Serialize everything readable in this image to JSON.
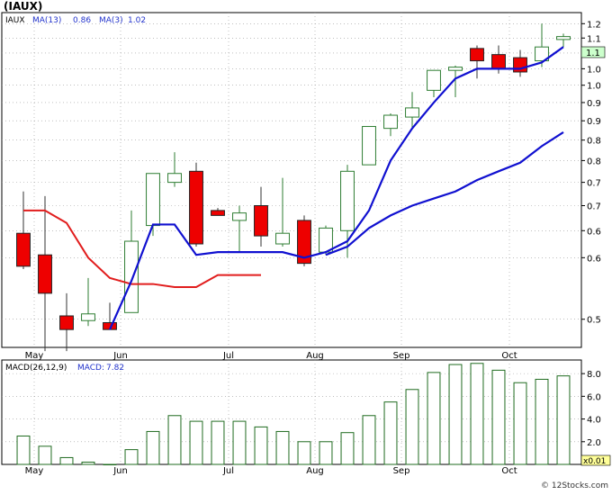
{
  "title": "(IAUX)",
  "copyright": "© 12Stocks.com",
  "colors": {
    "up_candle": "#2e7d32",
    "down_candle": "#ee0000",
    "ma_fast_red": "#e11d1d",
    "ma_blue": "#1010d0",
    "macd_bar": "#1f6b1f",
    "legend_ma": "#2233cc",
    "last_price_box": "#ccffcc"
  },
  "chart_data": [
    {
      "type": "candlestick",
      "legend": [
        "IAUX",
        "MA(13)",
        "0.86",
        "MA(3)",
        "1.02"
      ],
      "last_price_label": "1.1",
      "yaxis": {
        "ticks": [
          "1.2",
          "1.1",
          "1.1",
          "1.0",
          "1.0",
          "0.9",
          "0.9",
          "0.8",
          "0.8",
          "0.7",
          "0.7",
          "0.6",
          "0.6",
          "0.5"
        ],
        "log_scale": true,
        "range": [
          0.46,
          1.24
        ]
      },
      "xaxis": {
        "labels": [
          "May",
          "Jun",
          "Jul",
          "Aug",
          "Sep",
          "Oct"
        ],
        "label_positions": [
          1,
          5,
          10,
          14,
          18,
          23
        ]
      },
      "candles": [
        {
          "o": 0.645,
          "h": 0.73,
          "l": 0.58,
          "c": 0.585
        },
        {
          "o": 0.605,
          "h": 0.72,
          "l": 0.455,
          "c": 0.54
        },
        {
          "o": 0.505,
          "h": 0.54,
          "l": 0.455,
          "c": 0.485
        },
        {
          "o": 0.498,
          "h": 0.565,
          "l": 0.49,
          "c": 0.508
        },
        {
          "o": 0.495,
          "h": 0.525,
          "l": 0.488,
          "c": 0.485
        },
        {
          "o": 0.51,
          "h": 0.69,
          "l": 0.51,
          "c": 0.63
        },
        {
          "o": 0.66,
          "h": 0.77,
          "l": 0.64,
          "c": 0.77
        },
        {
          "o": 0.75,
          "h": 0.82,
          "l": 0.74,
          "c": 0.77
        },
        {
          "o": 0.775,
          "h": 0.795,
          "l": 0.62,
          "c": 0.625
        },
        {
          "o": 0.69,
          "h": 0.695,
          "l": 0.68,
          "c": 0.68
        },
        {
          "o": 0.67,
          "h": 0.7,
          "l": 0.61,
          "c": 0.685
        },
        {
          "o": 0.7,
          "h": 0.74,
          "l": 0.62,
          "c": 0.64
        },
        {
          "o": 0.625,
          "h": 0.76,
          "l": 0.62,
          "c": 0.645
        },
        {
          "o": 0.67,
          "h": 0.68,
          "l": 0.585,
          "c": 0.59
        },
        {
          "o": 0.61,
          "h": 0.66,
          "l": 0.605,
          "c": 0.655
        },
        {
          "o": 0.65,
          "h": 0.79,
          "l": 0.6,
          "c": 0.775
        },
        {
          "o": 0.79,
          "h": 0.88,
          "l": 0.79,
          "c": 0.885
        },
        {
          "o": 0.88,
          "h": 0.92,
          "l": 0.86,
          "c": 0.915
        },
        {
          "o": 0.91,
          "h": 0.98,
          "l": 0.88,
          "c": 0.935
        },
        {
          "o": 0.985,
          "h": 1.045,
          "l": 0.965,
          "c": 1.045
        },
        {
          "o": 1.045,
          "h": 1.06,
          "l": 0.965,
          "c": 1.055
        },
        {
          "o": 1.115,
          "h": 1.125,
          "l": 1.02,
          "c": 1.075
        },
        {
          "o": 1.095,
          "h": 1.125,
          "l": 1.035,
          "c": 1.05
        },
        {
          "o": 1.085,
          "h": 1.11,
          "l": 1.025,
          "c": 1.04
        },
        {
          "o": 1.075,
          "h": 1.2,
          "l": 1.055,
          "c": 1.12
        },
        {
          "o": 1.145,
          "h": 1.165,
          "l": 1.12,
          "c": 1.155
        }
      ],
      "ma_red": [
        0.69,
        0.69,
        0.665,
        0.6,
        0.565,
        0.555,
        0.555,
        0.55,
        0.55,
        0.57,
        0.57,
        0.57
      ],
      "ma_red_start": 0,
      "ma_blue": [
        0.485,
        0.56,
        0.662,
        0.662,
        0.605,
        0.61,
        0.61,
        0.61,
        0.61,
        0.6,
        0.61,
        0.63,
        0.69,
        0.8,
        0.88,
        0.95,
        1.02,
        1.05,
        1.05,
        1.05,
        1.07,
        1.12
      ],
      "ma_blue_start": 4,
      "ma_blue_slow": [
        0.605,
        0.62,
        0.655,
        0.68,
        0.7,
        0.715,
        0.73,
        0.755,
        0.775,
        0.795,
        0.835,
        0.87
      ],
      "ma_blue_slow_start": 14
    },
    {
      "type": "bar",
      "legend": [
        "MACD(26,12,9)",
        "MACD:",
        "7.82"
      ],
      "yaxis": {
        "ticks": [
          "8.0",
          "6.0",
          "4.0",
          "2.0"
        ],
        "range": [
          0,
          9.2
        ]
      },
      "scale_label": "x0.01",
      "xaxis": {
        "labels": [
          "May",
          "Jun",
          "Jul",
          "Aug",
          "Sep",
          "Oct"
        ]
      },
      "values": [
        2.5,
        1.6,
        0.6,
        0.2,
        0.0,
        1.3,
        2.9,
        4.3,
        3.8,
        3.8,
        3.8,
        3.3,
        2.9,
        2.0,
        2.0,
        2.8,
        4.3,
        5.5,
        6.6,
        8.1,
        8.8,
        8.9,
        8.3,
        7.2,
        7.5,
        7.8
      ]
    }
  ]
}
